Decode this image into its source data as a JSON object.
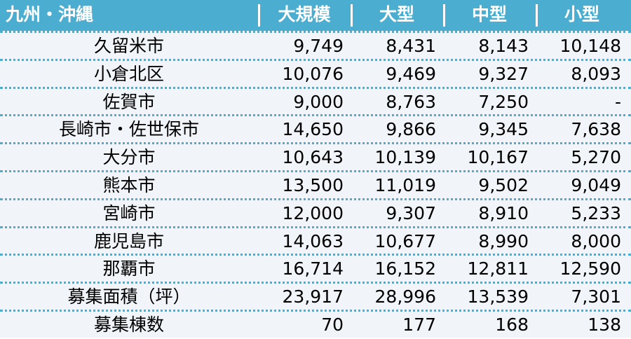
{
  "table": {
    "header": [
      "九州・沖縄",
      "大規模",
      "大型",
      "中型",
      "小型"
    ],
    "rows": [
      [
        "久留米市",
        "9,749",
        "8,431",
        "8,143",
        "10,148"
      ],
      [
        "小倉北区",
        "10,076",
        "9,469",
        "9,327",
        "8,093"
      ],
      [
        "佐賀市",
        "9,000",
        "8,763",
        "7,250",
        "-"
      ],
      [
        "長崎市・佐世保市",
        "14,650",
        "9,866",
        "9,345",
        "7,638"
      ],
      [
        "大分市",
        "10,643",
        "10,139",
        "10,167",
        "5,270"
      ],
      [
        "熊本市",
        "13,500",
        "11,019",
        "9,502",
        "9,049"
      ],
      [
        "宮崎市",
        "12,000",
        "9,307",
        "8,910",
        "5,233"
      ],
      [
        "鹿児島市",
        "14,063",
        "10,677",
        "8,990",
        "8,000"
      ],
      [
        "那覇市",
        "16,714",
        "16,152",
        "12,811",
        "12,590"
      ],
      [
        "募集面積（坪）",
        "23,917",
        "28,996",
        "13,539",
        "7,301"
      ],
      [
        "募集棟数",
        "70",
        "177",
        "168",
        "138"
      ]
    ]
  }
}
